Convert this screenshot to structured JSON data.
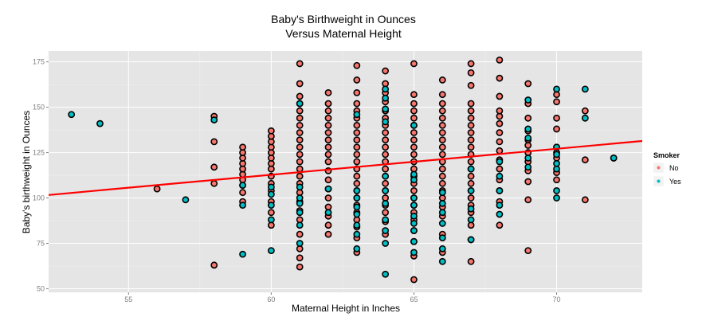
{
  "chart_data": {
    "type": "scatter",
    "title_lines": [
      "Baby's Birthweight in Ounces",
      "Versus Maternal Height"
    ],
    "xlabel": "Maternal Height in Inches",
    "ylabel": "Baby's birthweight in Ounces",
    "xlim": [
      52.2,
      73.0
    ],
    "ylim": [
      48,
      181
    ],
    "x_ticks": [
      55,
      60,
      65,
      70
    ],
    "y_ticks": [
      50,
      75,
      100,
      125,
      150,
      175
    ],
    "grid": true,
    "legend": {
      "title": "Smoker",
      "position": "right",
      "entries": [
        {
          "label": "No",
          "color": "#F8766D"
        },
        {
          "label": "Yes",
          "color": "#00BFC4"
        }
      ]
    },
    "regression_line": {
      "color": "#ff0000",
      "intercept": 27.0,
      "slope": 1.43
    },
    "series": [
      {
        "name": "No",
        "color": "#F8766D",
        "columns": [
          {
            "x": 56,
            "y": [
              105
            ]
          },
          {
            "x": 58,
            "y": [
              63,
              108,
              117,
              131,
              145
            ]
          },
          {
            "x": 59,
            "y": [
              98,
              103,
              107,
              110,
              113,
              116,
              119,
              122,
              125,
              128
            ]
          },
          {
            "x": 60,
            "y": [
              85,
              92,
              98,
              104,
              108,
              112,
              116,
              119,
              122,
              125,
              128,
              131,
              134,
              137
            ]
          },
          {
            "x": 61,
            "y": [
              62,
              67,
              72,
              80,
              88,
              93,
              98,
              103,
              108,
              112,
              116,
              120,
              124,
              128,
              132,
              136,
              140,
              144,
              148,
              152,
              156,
              163,
              174
            ]
          },
          {
            "x": 62,
            "y": [
              80,
              85,
              90,
              95,
              100,
              105,
              110,
              115,
              120,
              124,
              128,
              132,
              136,
              140,
              144,
              148,
              152,
              158
            ]
          },
          {
            "x": 63,
            "y": [
              70,
              78,
              84,
              88,
              92,
              96,
              100,
              104,
              108,
              112,
              116,
              120,
              124,
              128,
              132,
              136,
              140,
              144,
              148,
              152,
              158,
              165,
              173
            ]
          },
          {
            "x": 64,
            "y": [
              80,
              87,
              92,
              96,
              100,
              104,
              108,
              112,
              116,
              120,
              124,
              128,
              132,
              136,
              140,
              144,
              148,
              153,
              158,
              163,
              170
            ]
          },
          {
            "x": 65,
            "y": [
              55,
              68,
              76,
              82,
              88,
              92,
              96,
              100,
              104,
              108,
              112,
              116,
              120,
              124,
              128,
              132,
              136,
              140,
              144,
              148,
              152,
              157,
              174
            ]
          },
          {
            "x": 66,
            "y": [
              70,
              80,
              90,
              95,
              100,
              104,
              108,
              112,
              116,
              120,
              124,
              128,
              132,
              136,
              140,
              144,
              148,
              152,
              157,
              165
            ]
          },
          {
            "x": 67,
            "y": [
              65,
              77,
              85,
              92,
              96,
              100,
              104,
              108,
              112,
              116,
              120,
              124,
              128,
              132,
              136,
              140,
              144,
              148,
              152,
              162,
              169,
              174
            ]
          },
          {
            "x": 68,
            "y": [
              85,
              98,
              104,
              110,
              116,
              121,
              126,
              131,
              136,
              141,
              145,
              148,
              156,
              166,
              176
            ]
          },
          {
            "x": 69,
            "y": [
              71,
              99,
              109,
              115,
              120,
              125,
              129,
              132,
              137,
              144,
              152,
              163
            ]
          },
          {
            "x": 70,
            "y": [
              110,
              114,
              122,
              125,
              128,
              138,
              144,
              153,
              157
            ]
          },
          {
            "x": 71,
            "y": [
              99,
              121,
              148
            ]
          },
          {
            "x": 72,
            "y": [
              122
            ]
          }
        ]
      },
      {
        "name": "Yes",
        "color": "#00BFC4",
        "columns": [
          {
            "x": 53,
            "y": [
              146
            ]
          },
          {
            "x": 54,
            "y": [
              141
            ]
          },
          {
            "x": 57,
            "y": [
              99
            ]
          },
          {
            "x": 58,
            "y": [
              143
            ]
          },
          {
            "x": 59,
            "y": [
              69,
              96,
              107
            ]
          },
          {
            "x": 60,
            "y": [
              71,
              88,
              96,
              102,
              106
            ]
          },
          {
            "x": 61,
            "y": [
              75,
              85,
              92,
              97,
              100,
              106,
              152
            ]
          },
          {
            "x": 62,
            "y": [
              92,
              105
            ]
          },
          {
            "x": 63,
            "y": [
              72,
              80,
              85,
              91,
              95,
              100,
              104,
              146
            ]
          },
          {
            "x": 64,
            "y": [
              58,
              75,
              82,
              88,
              97,
              104,
              112,
              142,
              149,
              155,
              160
            ]
          },
          {
            "x": 65,
            "y": [
              70,
              76,
              82,
              86,
              90,
              96,
              100,
              110,
              113,
              140
            ]
          },
          {
            "x": 66,
            "y": [
              65,
              72,
              78,
              86,
              92,
              97,
              103
            ]
          },
          {
            "x": 67,
            "y": [
              77,
              88,
              94,
              104,
              116
            ]
          },
          {
            "x": 68,
            "y": [
              91,
              96,
              104,
              112,
              120
            ]
          },
          {
            "x": 69,
            "y": [
              117,
              122,
              133,
              138,
              154
            ]
          },
          {
            "x": 70,
            "y": [
              100,
              104,
              116,
              119,
              124,
              128,
              160
            ]
          },
          {
            "x": 71,
            "y": [
              144,
              160
            ]
          },
          {
            "x": 72,
            "y": [
              122
            ]
          }
        ]
      }
    ]
  }
}
